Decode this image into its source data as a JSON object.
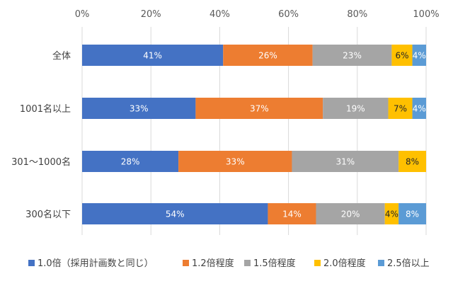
{
  "chart_data": {
    "type": "bar",
    "orientation": "horizontal",
    "stacked": "percent",
    "title": "",
    "xlabel": "",
    "ylabel": "",
    "xlim": [
      0,
      100
    ],
    "x_ticks": [
      "0%",
      "20%",
      "40%",
      "60%",
      "80%",
      "100%"
    ],
    "x_tick_values": [
      0,
      20,
      40,
      60,
      80,
      100
    ],
    "x_axis_position": "top",
    "grid": true,
    "legend_position": "bottom",
    "categories": [
      "全体",
      "1001名以上",
      "301～1000名",
      "300名以下"
    ],
    "series": [
      {
        "name": "1.0倍（採用計画数と同じ）",
        "color": "#4472C4",
        "label_color": "#ffffff",
        "values": [
          41,
          33,
          28,
          54
        ],
        "labels": [
          "41%",
          "33%",
          "28%",
          "54%"
        ]
      },
      {
        "name": "1.2倍程度",
        "color": "#ED7D31",
        "label_color": "#ffffff",
        "values": [
          26,
          37,
          33,
          14
        ],
        "labels": [
          "26%",
          "37%",
          "33%",
          "14%"
        ]
      },
      {
        "name": "1.5倍程度",
        "color": "#A5A5A5",
        "label_color": "#ffffff",
        "values": [
          23,
          19,
          31,
          20
        ],
        "labels": [
          "23%",
          "19%",
          "31%",
          "20%"
        ]
      },
      {
        "name": "2.0倍程度",
        "color": "#FFC000",
        "label_color": "#262626",
        "values": [
          6,
          7,
          8,
          4
        ],
        "labels": [
          "6%",
          "7%",
          "8%",
          "4%"
        ]
      },
      {
        "name": "2.5倍以上",
        "color": "#5B9BD5",
        "label_color": "#ffffff",
        "values": [
          4,
          4,
          0,
          8
        ],
        "labels": [
          "4%",
          "4%",
          "",
          "8%"
        ]
      }
    ]
  }
}
